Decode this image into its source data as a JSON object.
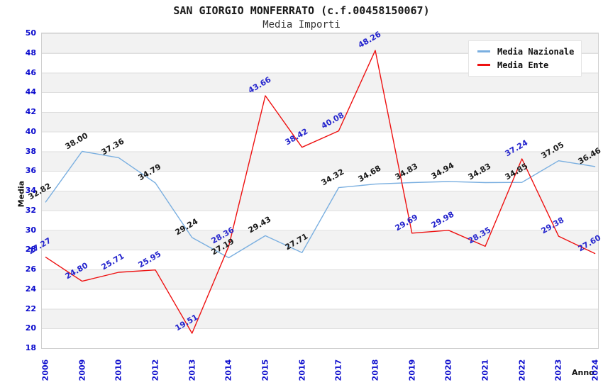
{
  "title": "SAN GIORGIO MONFERRATO (c.f.00458150067)",
  "subtitle": "Media Importi",
  "colors": {
    "axis_tick": "#0a0acd",
    "national_line": "#7aafe0",
    "ente_line": "#ee1111",
    "national_label": "#1a1a1a",
    "ente_label": "#2525cd",
    "band_gray": "#f2f2f2",
    "gridline": "#dedede",
    "plot_border": "#d0d0d0"
  },
  "chart_data": {
    "type": "line",
    "title": "SAN GIORGIO MONFERRATO (c.f.00458150067)",
    "subtitle": "Media Importi",
    "xlabel": "Anno",
    "ylabel": "Media",
    "ylim": [
      18,
      50
    ],
    "ytick_step": 2,
    "grid": "horizontal-bands",
    "legend_position": "top-right",
    "markers": false,
    "categories": [
      "2006",
      "2009",
      "2010",
      "2012",
      "2013",
      "2014",
      "2015",
      "2016",
      "2017",
      "2018",
      "2019",
      "2020",
      "2021",
      "2022",
      "2023",
      "2024"
    ],
    "series": [
      {
        "name": "Media Nazionale",
        "color": "#7aafe0",
        "label_color": "#1a1a1a",
        "values": [
          32.82,
          38.0,
          37.36,
          34.79,
          29.24,
          27.19,
          29.43,
          27.71,
          34.32,
          34.68,
          34.83,
          34.94,
          34.83,
          34.85,
          37.05,
          36.46
        ]
      },
      {
        "name": "Media Ente",
        "color": "#ee1111",
        "label_color": "#2525cd",
        "values": [
          27.27,
          24.8,
          25.71,
          25.95,
          19.51,
          28.36,
          43.66,
          38.42,
          40.08,
          48.26,
          29.69,
          29.98,
          28.35,
          37.24,
          29.38,
          27.6
        ]
      }
    ]
  }
}
